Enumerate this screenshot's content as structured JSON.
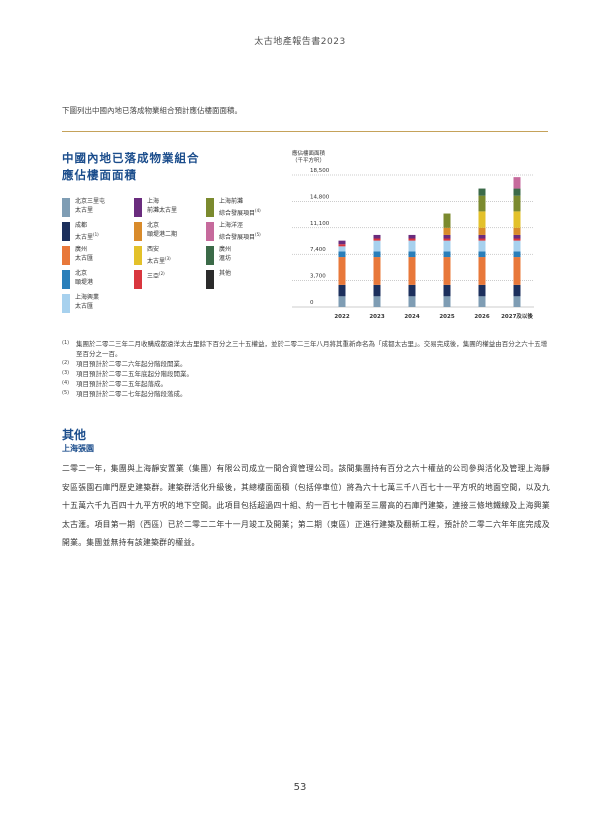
{
  "header": {
    "title": "太古地產報告書2023"
  },
  "intro": "下圖列出中國內地已落成物業組合預計應佔樓面面積。",
  "chart_title": {
    "line1": "中國內地已落成物業組合",
    "line2": "應佔樓面面積"
  },
  "legend": [
    {
      "line1": "北京三里屯",
      "line2": "太古里",
      "color": "#7f9db4"
    },
    {
      "line1": "上海",
      "line2": "前灘太古里",
      "color": "#6a2c7e"
    },
    {
      "line1": "上海前灘",
      "line2": "綜合發展項目",
      "sup": "(4)",
      "color": "#7b8a2e"
    },
    {
      "line1": "成都",
      "line2": "太古里",
      "sup": "(1)",
      "color": "#1c2f5c"
    },
    {
      "line1": "北京",
      "line2": "頤堤港二期",
      "color": "#d98b2b"
    },
    {
      "line1": "上海洋涇",
      "line2": "綜合發展項目",
      "sup": "(5)",
      "color": "#c66a9c"
    },
    {
      "line1": "廣州",
      "line2": "太古匯",
      "color": "#e8783a"
    },
    {
      "line1": "西安",
      "line2": "太古里",
      "sup": "(3)",
      "color": "#e3c12a"
    },
    {
      "line1": "廣州",
      "line2": "滙坊",
      "color": "#3b6a48"
    },
    {
      "line1": "北京",
      "line2": "頤堤港",
      "color": "#2a7fba"
    },
    {
      "line1": "三亞",
      "sup": "(2)",
      "color": "#d9363e"
    },
    {
      "line1": "其他",
      "color": "#2b2b2b"
    },
    {
      "line1": "上海興業",
      "line2": "太古匯",
      "color": "#a7d1ee"
    }
  ],
  "chart_data": {
    "type": "bar",
    "ylabel_line1": "應佔樓面面積",
    "ylabel_line2": "（千平方呎）",
    "y_ticks": [
      "0",
      "3,700",
      "7,400",
      "11,100",
      "14,800",
      "18,500"
    ],
    "ylim": [
      0,
      18500
    ],
    "categories": [
      "2022",
      "2023",
      "2024",
      "2025",
      "2026",
      "2027及以後"
    ],
    "series": [
      {
        "color": "#7f9db4",
        "values": [
          1500,
          1500,
          1500,
          1500,
          1500,
          1500
        ]
      },
      {
        "color": "#1c2f5c",
        "values": [
          1600,
          1600,
          1600,
          1600,
          1600,
          1600
        ]
      },
      {
        "color": "#e8783a",
        "values": [
          3900,
          3900,
          3900,
          3900,
          3900,
          3900
        ]
      },
      {
        "color": "#2a7fba",
        "values": [
          800,
          800,
          800,
          800,
          800,
          800
        ]
      },
      {
        "color": "#a7d1ee",
        "values": [
          700,
          1500,
          1500,
          1500,
          1500,
          1500
        ]
      },
      {
        "color": "#d9363e",
        "values": [
          300,
          300,
          300,
          300,
          300,
          300
        ]
      },
      {
        "color": "#6a2c7e",
        "values": [
          500,
          500,
          500,
          500,
          500,
          500
        ]
      },
      {
        "color": "#d98b2b",
        "values": [
          0,
          0,
          0,
          1000,
          1000,
          1000
        ]
      },
      {
        "color": "#e3c12a",
        "values": [
          0,
          0,
          0,
          0,
          2300,
          2300
        ]
      },
      {
        "color": "#7b8a2e",
        "values": [
          0,
          0,
          0,
          2000,
          2200,
          2200
        ]
      },
      {
        "color": "#3b6a48",
        "values": [
          0,
          0,
          0,
          0,
          1000,
          1000
        ]
      },
      {
        "color": "#c66a9c",
        "values": [
          0,
          0,
          0,
          0,
          0,
          1600
        ]
      }
    ]
  },
  "footnotes": [
    {
      "mark": "(1)",
      "text": "集團於二零二三年二月收購成都遠洋太古里餘下百分之三十五權益，並於二零二三年八月將其重新命名為「成都太古里」。交易完成後，集團的權益由百分之六十五增至百分之一百。"
    },
    {
      "mark": "(2)",
      "text": "項目預計於二零二六年起分階段開業。"
    },
    {
      "mark": "(3)",
      "text": "項目預計於二零二五年底起分階段開業。"
    },
    {
      "mark": "(4)",
      "text": "項目預計於二零二五年起落成。"
    },
    {
      "mark": "(5)",
      "text": "項目預計於二零二七年起分階段落成。"
    }
  ],
  "section": {
    "title": "其他",
    "subtitle": "上海張園",
    "body": "二零二一年，集團與上海靜安置業（集團）有限公司成立一間合資管理公司。該間集團持有百分之六十權益的公司參與活化及管理上海靜安區張園石庫門歷史建築群。建築群活化升級後，其總樓面面積（包括停車位）將為六十七萬三千八百七十一平方呎的地面空間，以及九十五萬六千九百四十九平方呎的地下空間。此項目包括超過四十組、約一百七十幢兩至三層高的石庫門建築，連接三條地鐵線及上海興業太古滙。項目第一期（西區）已於二零二二年十一月竣工及開業；第二期（東區）正進行建築及翻新工程，預計於二零二六年年底完成及開業。集團並無持有該建築群的權益。"
  },
  "page_number": "53"
}
